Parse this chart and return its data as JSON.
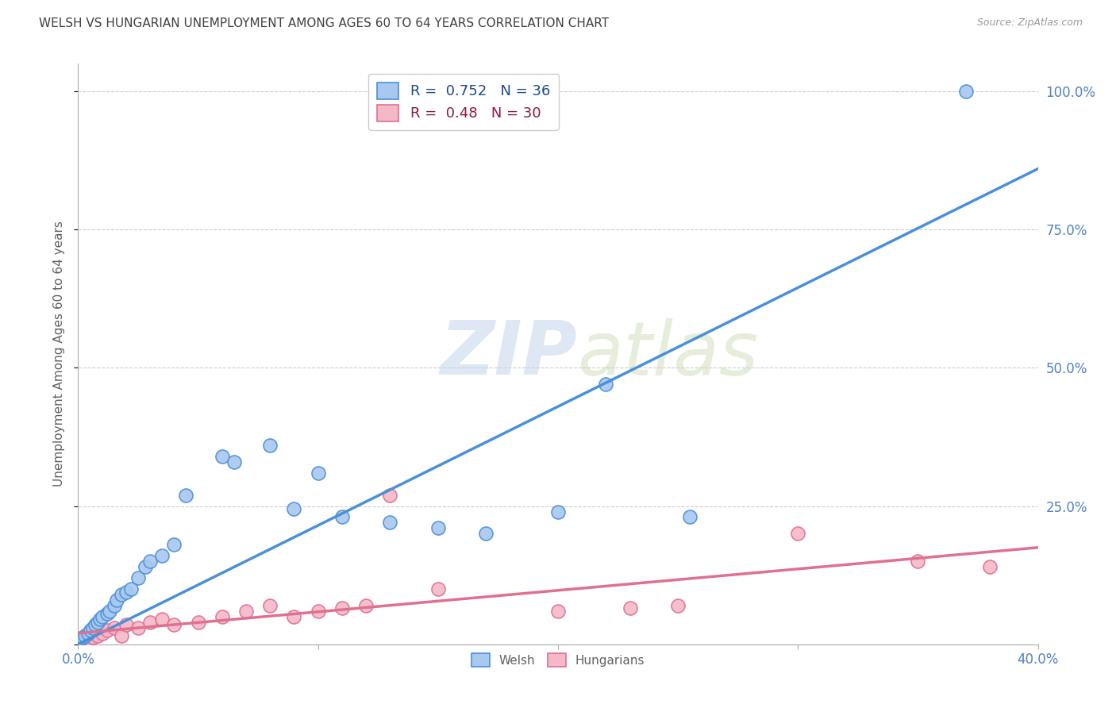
{
  "title": "WELSH VS HUNGARIAN UNEMPLOYMENT AMONG AGES 60 TO 64 YEARS CORRELATION CHART",
  "source": "Source: ZipAtlas.com",
  "ylabel": "Unemployment Among Ages 60 to 64 years",
  "xlim": [
    0.0,
    0.4
  ],
  "ylim": [
    0.0,
    1.05
  ],
  "xticks": [
    0.0,
    0.1,
    0.2,
    0.3,
    0.4
  ],
  "xticklabels": [
    "0.0%",
    "",
    "",
    "",
    "40.0%"
  ],
  "yticks": [
    0.0,
    0.25,
    0.5,
    0.75,
    1.0
  ],
  "yticklabels": [
    "",
    "25.0%",
    "50.0%",
    "75.0%",
    "100.0%"
  ],
  "welsh_color": "#4a90d9",
  "welsh_fill": "#a8c8f0",
  "hungarian_color": "#e07090",
  "hungarian_fill": "#f5b8c8",
  "welsh_R": 0.752,
  "welsh_N": 36,
  "hungarian_R": 0.48,
  "hungarian_N": 30,
  "welsh_line_x": [
    0.0,
    0.4
  ],
  "welsh_line_y": [
    0.0,
    0.86
  ],
  "hungarian_line_x": [
    0.0,
    0.4
  ],
  "hungarian_line_y": [
    0.02,
    0.175
  ],
  "welsh_scatter_x": [
    0.001,
    0.002,
    0.003,
    0.004,
    0.005,
    0.006,
    0.007,
    0.008,
    0.009,
    0.01,
    0.012,
    0.013,
    0.015,
    0.016,
    0.018,
    0.02,
    0.022,
    0.025,
    0.028,
    0.03,
    0.035,
    0.04,
    0.045,
    0.06,
    0.065,
    0.08,
    0.09,
    0.1,
    0.11,
    0.13,
    0.15,
    0.17,
    0.2,
    0.22,
    0.255,
    0.37
  ],
  "welsh_scatter_y": [
    0.01,
    0.012,
    0.015,
    0.02,
    0.025,
    0.03,
    0.035,
    0.04,
    0.045,
    0.05,
    0.055,
    0.06,
    0.07,
    0.08,
    0.09,
    0.095,
    0.1,
    0.12,
    0.14,
    0.15,
    0.16,
    0.18,
    0.27,
    0.34,
    0.33,
    0.36,
    0.245,
    0.31,
    0.23,
    0.22,
    0.21,
    0.2,
    0.24,
    0.47,
    0.23,
    1.0
  ],
  "hungarian_scatter_x": [
    0.001,
    0.002,
    0.004,
    0.006,
    0.008,
    0.01,
    0.012,
    0.015,
    0.018,
    0.02,
    0.025,
    0.03,
    0.035,
    0.04,
    0.05,
    0.06,
    0.07,
    0.08,
    0.09,
    0.1,
    0.11,
    0.12,
    0.13,
    0.15,
    0.2,
    0.23,
    0.25,
    0.3,
    0.35,
    0.38
  ],
  "hungarian_scatter_y": [
    0.005,
    0.008,
    0.01,
    0.012,
    0.015,
    0.02,
    0.025,
    0.03,
    0.015,
    0.035,
    0.03,
    0.04,
    0.045,
    0.035,
    0.04,
    0.05,
    0.06,
    0.07,
    0.05,
    0.06,
    0.065,
    0.07,
    0.27,
    0.1,
    0.06,
    0.065,
    0.07,
    0.2,
    0.15,
    0.14
  ],
  "watermark_zip": "ZIP",
  "watermark_atlas": "atlas",
  "background_color": "#ffffff",
  "grid_color": "#cccccc",
  "title_color": "#404040",
  "axis_label_color": "#606060"
}
